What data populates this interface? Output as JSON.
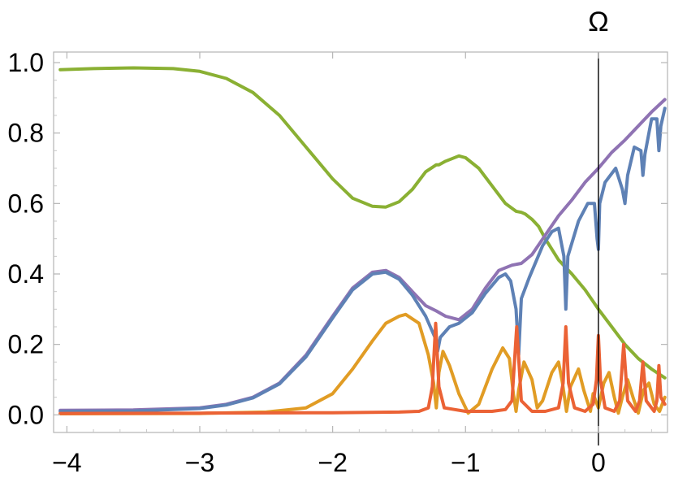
{
  "chart_data": {
    "type": "line",
    "title": "",
    "xlabel": "",
    "ylabel": "",
    "xlim": [
      -4.1,
      0.52
    ],
    "ylim": [
      -0.05,
      1.03
    ],
    "x_ticks": [
      -4,
      -3,
      -2,
      -1,
      0
    ],
    "x_tick_labels": [
      "−4",
      "−3",
      "−2",
      "−1",
      "0"
    ],
    "y_ticks": [
      0.0,
      0.2,
      0.4,
      0.6,
      0.8,
      1.0
    ],
    "y_tick_labels": [
      "0.0",
      "0.2",
      "0.4",
      "0.6",
      "0.8",
      "1.0"
    ],
    "grid": false,
    "legend": "none",
    "vertical_line": {
      "x": 0,
      "label": "Ω",
      "color": "#000000"
    },
    "series": [
      {
        "color": "#8AB033",
        "points": [
          [
            -4.05,
            0.98
          ],
          [
            -3.8,
            0.983
          ],
          [
            -3.5,
            0.985
          ],
          [
            -3.2,
            0.983
          ],
          [
            -3.0,
            0.975
          ],
          [
            -2.8,
            0.955
          ],
          [
            -2.6,
            0.915
          ],
          [
            -2.4,
            0.85
          ],
          [
            -2.2,
            0.76
          ],
          [
            -2.0,
            0.67
          ],
          [
            -1.85,
            0.615
          ],
          [
            -1.7,
            0.592
          ],
          [
            -1.6,
            0.59
          ],
          [
            -1.5,
            0.605
          ],
          [
            -1.4,
            0.64
          ],
          [
            -1.3,
            0.69
          ],
          [
            -1.22,
            0.71
          ],
          [
            -1.2,
            0.71
          ],
          [
            -1.15,
            0.72
          ],
          [
            -1.05,
            0.735
          ],
          [
            -1.0,
            0.73
          ],
          [
            -0.9,
            0.7
          ],
          [
            -0.8,
            0.65
          ],
          [
            -0.7,
            0.6
          ],
          [
            -0.62,
            0.578
          ],
          [
            -0.58,
            0.575
          ],
          [
            -0.55,
            0.57
          ],
          [
            -0.5,
            0.555
          ],
          [
            -0.45,
            0.535
          ],
          [
            -0.4,
            0.5
          ],
          [
            -0.3,
            0.44
          ],
          [
            -0.2,
            0.4
          ],
          [
            -0.1,
            0.355
          ],
          [
            0.0,
            0.3
          ],
          [
            0.1,
            0.25
          ],
          [
            0.2,
            0.2
          ],
          [
            0.3,
            0.16
          ],
          [
            0.4,
            0.13
          ],
          [
            0.5,
            0.105
          ]
        ]
      },
      {
        "color": "#8F73B3",
        "points": [
          [
            -4.05,
            0.013
          ],
          [
            -3.5,
            0.014
          ],
          [
            -3.0,
            0.02
          ],
          [
            -2.8,
            0.03
          ],
          [
            -2.6,
            0.05
          ],
          [
            -2.4,
            0.09
          ],
          [
            -2.2,
            0.17
          ],
          [
            -2.0,
            0.28
          ],
          [
            -1.85,
            0.36
          ],
          [
            -1.7,
            0.405
          ],
          [
            -1.6,
            0.41
          ],
          [
            -1.5,
            0.39
          ],
          [
            -1.4,
            0.35
          ],
          [
            -1.3,
            0.31
          ],
          [
            -1.22,
            0.295
          ],
          [
            -1.15,
            0.28
          ],
          [
            -1.05,
            0.27
          ],
          [
            -0.95,
            0.3
          ],
          [
            -0.85,
            0.36
          ],
          [
            -0.75,
            0.41
          ],
          [
            -0.65,
            0.425
          ],
          [
            -0.58,
            0.43
          ],
          [
            -0.5,
            0.455
          ],
          [
            -0.4,
            0.51
          ],
          [
            -0.3,
            0.565
          ],
          [
            -0.2,
            0.61
          ],
          [
            -0.1,
            0.66
          ],
          [
            0.0,
            0.7
          ],
          [
            0.1,
            0.745
          ],
          [
            0.2,
            0.78
          ],
          [
            0.3,
            0.82
          ],
          [
            0.4,
            0.86
          ],
          [
            0.5,
            0.895
          ]
        ]
      },
      {
        "color": "#5E81B5",
        "points": [
          [
            -4.05,
            0.01
          ],
          [
            -3.5,
            0.011
          ],
          [
            -3.0,
            0.018
          ],
          [
            -2.8,
            0.028
          ],
          [
            -2.6,
            0.048
          ],
          [
            -2.4,
            0.088
          ],
          [
            -2.2,
            0.165
          ],
          [
            -2.0,
            0.275
          ],
          [
            -1.85,
            0.355
          ],
          [
            -1.7,
            0.4
          ],
          [
            -1.6,
            0.405
          ],
          [
            -1.5,
            0.385
          ],
          [
            -1.4,
            0.34
          ],
          [
            -1.3,
            0.28
          ],
          [
            -1.23,
            0.22
          ],
          [
            -1.21,
            0.18
          ],
          [
            -1.19,
            0.22
          ],
          [
            -1.12,
            0.25
          ],
          [
            -1.05,
            0.26
          ],
          [
            -0.95,
            0.29
          ],
          [
            -0.85,
            0.345
          ],
          [
            -0.75,
            0.39
          ],
          [
            -0.7,
            0.4
          ],
          [
            -0.66,
            0.38
          ],
          [
            -0.62,
            0.3
          ],
          [
            -0.6,
            0.17
          ],
          [
            -0.58,
            0.33
          ],
          [
            -0.52,
            0.39
          ],
          [
            -0.42,
            0.48
          ],
          [
            -0.35,
            0.52
          ],
          [
            -0.3,
            0.53
          ],
          [
            -0.26,
            0.45
          ],
          [
            -0.245,
            0.3
          ],
          [
            -0.23,
            0.45
          ],
          [
            -0.15,
            0.55
          ],
          [
            -0.08,
            0.6
          ],
          [
            -0.03,
            0.6
          ],
          [
            -0.01,
            0.5
          ],
          [
            0.0,
            0.47
          ],
          [
            0.01,
            0.6
          ],
          [
            0.05,
            0.66
          ],
          [
            0.13,
            0.7
          ],
          [
            0.18,
            0.64
          ],
          [
            0.2,
            0.6
          ],
          [
            0.22,
            0.68
          ],
          [
            0.27,
            0.76
          ],
          [
            0.32,
            0.75
          ],
          [
            0.335,
            0.68
          ],
          [
            0.35,
            0.74
          ],
          [
            0.4,
            0.84
          ],
          [
            0.44,
            0.84
          ],
          [
            0.455,
            0.75
          ],
          [
            0.47,
            0.82
          ],
          [
            0.5,
            0.87
          ]
        ]
      },
      {
        "color": "#E19C24",
        "points": [
          [
            -4.05,
            0.003
          ],
          [
            -3.0,
            0.004
          ],
          [
            -2.5,
            0.008
          ],
          [
            -2.2,
            0.02
          ],
          [
            -2.0,
            0.06
          ],
          [
            -1.85,
            0.13
          ],
          [
            -1.7,
            0.21
          ],
          [
            -1.6,
            0.26
          ],
          [
            -1.5,
            0.28
          ],
          [
            -1.45,
            0.285
          ],
          [
            -1.35,
            0.26
          ],
          [
            -1.28,
            0.17
          ],
          [
            -1.24,
            0.09
          ],
          [
            -1.22,
            0.02
          ],
          [
            -1.2,
            0.12
          ],
          [
            -1.17,
            0.18
          ],
          [
            -1.12,
            0.14
          ],
          [
            -1.05,
            0.06
          ],
          [
            -0.98,
            0.005
          ],
          [
            -0.9,
            0.03
          ],
          [
            -0.8,
            0.13
          ],
          [
            -0.72,
            0.19
          ],
          [
            -0.67,
            0.16
          ],
          [
            -0.64,
            0.06
          ],
          [
            -0.62,
            0.01
          ],
          [
            -0.6,
            0.07
          ],
          [
            -0.56,
            0.15
          ],
          [
            -0.5,
            0.1
          ],
          [
            -0.46,
            0.02
          ],
          [
            -0.42,
            0.04
          ],
          [
            -0.35,
            0.12
          ],
          [
            -0.3,
            0.15
          ],
          [
            -0.27,
            0.09
          ],
          [
            -0.24,
            0.01
          ],
          [
            -0.21,
            0.08
          ],
          [
            -0.15,
            0.13
          ],
          [
            -0.11,
            0.07
          ],
          [
            -0.06,
            0.01
          ],
          [
            -0.04,
            0.06
          ],
          [
            0.0,
            0.02
          ],
          [
            0.04,
            0.09
          ],
          [
            0.08,
            0.12
          ],
          [
            0.12,
            0.05
          ],
          [
            0.15,
            0.005
          ],
          [
            0.18,
            0.05
          ],
          [
            0.22,
            0.1
          ],
          [
            0.26,
            0.05
          ],
          [
            0.3,
            0.005
          ],
          [
            0.34,
            0.07
          ],
          [
            0.38,
            0.09
          ],
          [
            0.42,
            0.03
          ],
          [
            0.46,
            0.01
          ],
          [
            0.5,
            0.05
          ]
        ]
      },
      {
        "color": "#EB6235",
        "points": [
          [
            -4.05,
            0.004
          ],
          [
            -3.0,
            0.005
          ],
          [
            -2.0,
            0.006
          ],
          [
            -1.5,
            0.008
          ],
          [
            -1.35,
            0.01
          ],
          [
            -1.28,
            0.02
          ],
          [
            -1.25,
            0.08
          ],
          [
            -1.225,
            0.26
          ],
          [
            -1.2,
            0.08
          ],
          [
            -1.16,
            0.02
          ],
          [
            -1.0,
            0.01
          ],
          [
            -0.8,
            0.01
          ],
          [
            -0.7,
            0.015
          ],
          [
            -0.65,
            0.04
          ],
          [
            -0.615,
            0.25
          ],
          [
            -0.58,
            0.04
          ],
          [
            -0.5,
            0.01
          ],
          [
            -0.4,
            0.01
          ],
          [
            -0.3,
            0.02
          ],
          [
            -0.265,
            0.09
          ],
          [
            -0.245,
            0.25
          ],
          [
            -0.225,
            0.09
          ],
          [
            -0.18,
            0.02
          ],
          [
            -0.1,
            0.01
          ],
          [
            -0.04,
            0.03
          ],
          [
            -0.015,
            0.1
          ],
          [
            0.0,
            0.225
          ],
          [
            0.015,
            0.1
          ],
          [
            0.05,
            0.02
          ],
          [
            0.12,
            0.01
          ],
          [
            0.16,
            0.04
          ],
          [
            0.19,
            0.2
          ],
          [
            0.22,
            0.04
          ],
          [
            0.28,
            0.01
          ],
          [
            0.31,
            0.04
          ],
          [
            0.335,
            0.15
          ],
          [
            0.36,
            0.04
          ],
          [
            0.42,
            0.01
          ],
          [
            0.44,
            0.04
          ],
          [
            0.455,
            0.14
          ],
          [
            0.47,
            0.05
          ],
          [
            0.5,
            0.03
          ]
        ]
      }
    ]
  }
}
